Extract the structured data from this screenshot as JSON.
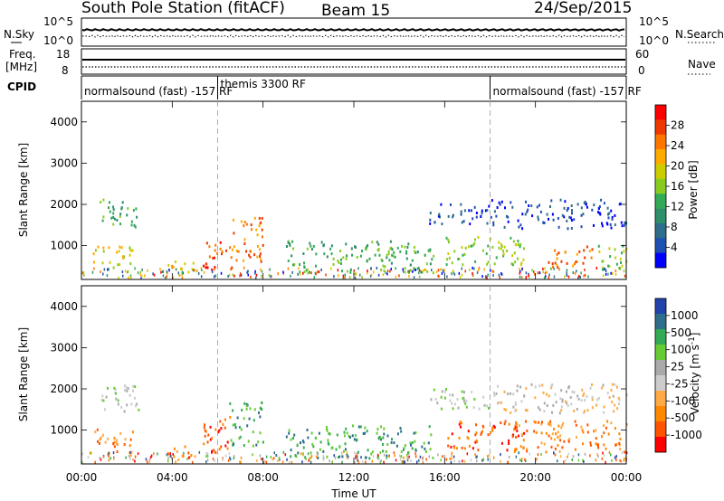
{
  "header": {
    "title": "South Pole Station (fitACF)",
    "beam": "Beam 15",
    "date": "24/Sep/2015"
  },
  "side_labels": {
    "n_sky": "N.Sky",
    "n_search": "N.Search",
    "freq_line1": "Freq.",
    "freq_line2": "[MHz]",
    "nave": "Nave",
    "cpid": "CPID"
  },
  "noise_panel": {
    "left_ticks": [
      "10^5",
      "10^0"
    ],
    "right_ticks": [
      "10^5",
      "10^0"
    ]
  },
  "freq_panel": {
    "left_ticks": [
      "18",
      "8"
    ],
    "right_ticks": [
      "60",
      "0"
    ]
  },
  "cpid_panel": {
    "segments": [
      {
        "label": "normalsound (fast) -157 RF",
        "start_hour": 0
      },
      {
        "label": "themis 3300 RF",
        "start_hour": 6
      },
      {
        "label": "normalsound (fast) -157 RF",
        "start_hour": 18
      }
    ]
  },
  "chart_data": [
    {
      "type": "heatmap",
      "name": "power",
      "ylabel": "Slant Range [km]",
      "x_range_hours": [
        0,
        24
      ],
      "ylim": [
        180,
        4500
      ],
      "y_ticks": [
        "1000",
        "2000",
        "3000",
        "4000"
      ],
      "x_ticks": [
        "00:00",
        "04:00",
        "08:00",
        "12:00",
        "16:00",
        "20:00",
        "00:00"
      ],
      "colorbar": {
        "label": "Power [dB]",
        "ticks": [
          "28",
          "24",
          "20",
          "16",
          "12",
          "8",
          "4"
        ],
        "colors": [
          "#ff0000",
          "#ee3a00",
          "#ff7700",
          "#ffaa00",
          "#cccc00",
          "#88cc22",
          "#33aa55",
          "#2f8f6a",
          "#2e6e8a",
          "#1f4fb0",
          "#0000ff"
        ]
      },
      "regions": [
        {
          "t0": 0.8,
          "t1": 2.5,
          "r0": 1400,
          "r1": 2100,
          "level": 6
        },
        {
          "t0": 0.5,
          "t1": 2.3,
          "r0": 450,
          "r1": 1000,
          "level": 4
        },
        {
          "t0": 3.7,
          "t1": 5.0,
          "r0": 200,
          "r1": 600,
          "level": 3
        },
        {
          "t0": 5.3,
          "t1": 6.6,
          "r0": 400,
          "r1": 1100,
          "level": 1
        },
        {
          "t0": 6.5,
          "t1": 8.0,
          "r0": 600,
          "r1": 1700,
          "level": 2
        },
        {
          "t0": 9.0,
          "t1": 15.5,
          "r0": 300,
          "r1": 1100,
          "level": 6
        },
        {
          "t0": 15.3,
          "t1": 18.0,
          "r0": 1500,
          "r1": 2000,
          "level": 9
        },
        {
          "t0": 16.0,
          "t1": 19.5,
          "r0": 500,
          "r1": 1200,
          "level": 5
        },
        {
          "t0": 18.0,
          "t1": 24.0,
          "r0": 1400,
          "r1": 2100,
          "level": 9
        },
        {
          "t0": 20.5,
          "t1": 22.5,
          "r0": 450,
          "r1": 1000,
          "level": 2
        },
        {
          "t0": 22.5,
          "t1": 24.0,
          "r0": 400,
          "r1": 1000,
          "level": 5
        }
      ]
    },
    {
      "type": "heatmap",
      "name": "velocity",
      "ylabel": "Slant Range [km]",
      "xlabel": "Time UT",
      "x_range_hours": [
        0,
        24
      ],
      "ylim": [
        180,
        4500
      ],
      "y_ticks": [
        "1000",
        "2000",
        "3000",
        "4000"
      ],
      "x_ticks": [
        "00:00",
        "04:00",
        "08:00",
        "12:00",
        "16:00",
        "20:00",
        "00:00"
      ],
      "colorbar": {
        "label": "Velocity [m s^-1]",
        "ticks": [
          "1000",
          "500",
          "100",
          "25",
          "-25",
          "-100",
          "-500",
          "-1000"
        ],
        "colors": [
          "#2244aa",
          "#2e6e8a",
          "#33aa55",
          "#66cc33",
          "#aaaaaa",
          "#cccccc",
          "#ffaa44",
          "#ff8800",
          "#ff5500",
          "#ff0000"
        ]
      },
      "regions": [
        {
          "t0": 0.8,
          "t1": 2.5,
          "r0": 1400,
          "r1": 2100,
          "level": 4
        },
        {
          "t0": 0.5,
          "t1": 2.3,
          "r0": 450,
          "r1": 1000,
          "level": 7
        },
        {
          "t0": 3.7,
          "t1": 5.0,
          "r0": 200,
          "r1": 600,
          "level": 7
        },
        {
          "t0": 5.3,
          "t1": 6.6,
          "r0": 400,
          "r1": 1300,
          "level": 8
        },
        {
          "t0": 6.5,
          "t1": 8.0,
          "r0": 600,
          "r1": 1700,
          "level": 2
        },
        {
          "t0": 9.0,
          "t1": 15.5,
          "r0": 300,
          "r1": 1100,
          "level": 2
        },
        {
          "t0": 15.3,
          "t1": 18.0,
          "r0": 1500,
          "r1": 2000,
          "level": 4
        },
        {
          "t0": 16.0,
          "t1": 19.5,
          "r0": 500,
          "r1": 1200,
          "level": 8
        },
        {
          "t0": 18.0,
          "t1": 24.0,
          "r0": 1400,
          "r1": 2100,
          "level": 5
        },
        {
          "t0": 19.0,
          "t1": 24.0,
          "r0": 450,
          "r1": 1200,
          "level": 7
        }
      ]
    }
  ]
}
